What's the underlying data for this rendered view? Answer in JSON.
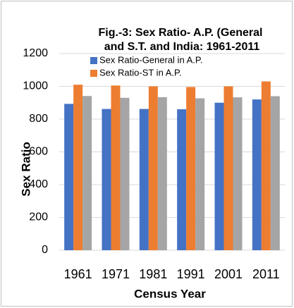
{
  "chart_data": {
    "type": "bar",
    "title": [
      "Fig.-3: Sex Ratio- A.P. (General",
      "and S.T. and India: 1961-2011"
    ],
    "x_label": "Census Year",
    "y_label": "Sex Ratio",
    "categories": [
      "1961",
      "1971",
      "1981",
      "1991",
      "2001",
      "2011"
    ],
    "series": [
      {
        "name": "Sex Ratio-General in A.P.",
        "color": "#4472c4",
        "values": [
          893,
          862,
          862,
          860,
          900,
          920
        ]
      },
      {
        "name": "Sex Ratio-ST in A.P.",
        "color": "#ed7d31",
        "values": [
          1010,
          1005,
          1000,
          996,
          1000,
          1030
        ]
      },
      {
        "color": "#a5a5a5",
        "values": [
          941,
          930,
          934,
          927,
          933,
          940
        ]
      }
    ],
    "ylim": [
      0,
      1200
    ],
    "yticks": [
      0,
      200,
      400,
      600,
      800,
      1000,
      1200
    ],
    "grid": true
  }
}
